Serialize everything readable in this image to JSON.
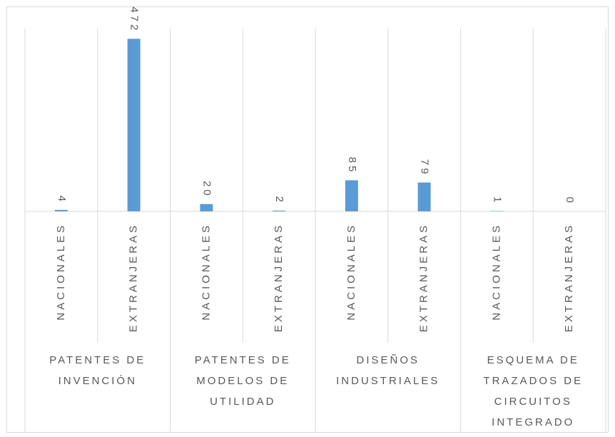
{
  "chart_data": {
    "type": "bar",
    "groups": [
      "PATENTES DE INVENCIÓN",
      "PATENTES DE MODELOS DE UTILIDAD",
      "DISEÑOS INDUSTRIALES",
      "ESQUEMA DE TRAZADOS DE CIRCUITOS INTEGRADO"
    ],
    "categories": [
      "NACIONALES",
      "EXTRANJERAS",
      "NACIONALES",
      "EXTRANJERAS",
      "NACIONALES",
      "EXTRANJERAS",
      "NACIONALES",
      "EXTRANJERAS"
    ],
    "values": [
      4,
      472,
      20,
      2,
      85,
      79,
      1,
      0
    ],
    "color": "#5b9bd5",
    "ylim": [
      0,
      500
    ]
  }
}
